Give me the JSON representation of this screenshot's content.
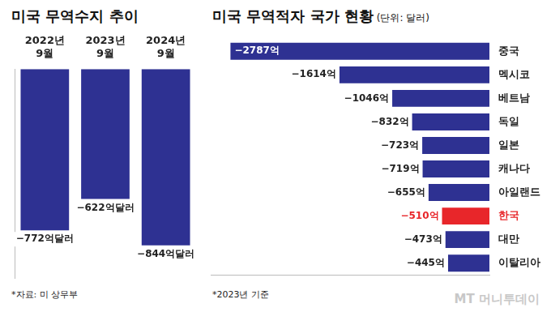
{
  "chart_data": [
    {
      "type": "bar",
      "title": "미국 무역수지 추이",
      "categories": [
        "2022년 9월",
        "2023년 9월",
        "2024년 9월"
      ],
      "values": [
        -772,
        -622,
        -844
      ],
      "value_labels": [
        "−772억달러",
        "−622억달러",
        "−844억달러"
      ],
      "data_labels": true,
      "color": "#2e3192",
      "ylim": [
        -1000,
        0
      ],
      "tick_labels": "x",
      "grid": false,
      "note": "*자료: 미 상무부"
    },
    {
      "type": "bar",
      "orientation": "horizontal",
      "title": "미국 무역적자 국가 현황",
      "subtitle": "(단위: 달러)",
      "categories": [
        "중국",
        "멕시코",
        "베트남",
        "독일",
        "일본",
        "캐나다",
        "아일랜드",
        "한국",
        "대만",
        "이탈리아"
      ],
      "values": [
        -2787,
        -1614,
        -1046,
        -832,
        -723,
        -719,
        -655,
        -510,
        -473,
        -445
      ],
      "value_labels": [
        "−2787억",
        "−1614억",
        "−1046억",
        "−832억",
        "−723억",
        "−719억",
        "−655억",
        "−510억",
        "−473억",
        "−445억"
      ],
      "data_labels": true,
      "color": "#2e3192",
      "colors": [
        "#2e3192",
        "#2e3192",
        "#2e3192",
        "#2e3192",
        "#2e3192",
        "#2e3192",
        "#2e3192",
        "#e8262a",
        "#2e3192",
        "#2e3192"
      ],
      "xlim": [
        -3000,
        0
      ],
      "tick_labels": "y",
      "grid": false,
      "note": "*2023년 기준"
    }
  ],
  "watermark": "MT 머니투데이"
}
